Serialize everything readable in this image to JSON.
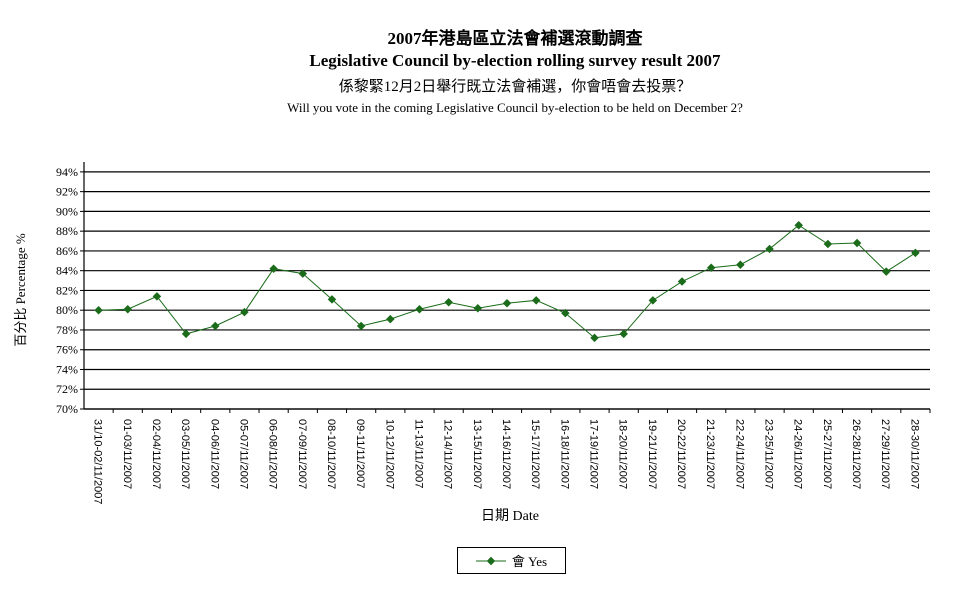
{
  "chart_data": {
    "type": "line",
    "title": "2007年港島區立法會補選滾動調查",
    "subtitle": "Legislative Council by-election rolling survey result 2007",
    "question_zh": "係黎緊12月2日舉行既立法會補選，你會唔會去投票？",
    "question_en": "Will you vote in the coming Legislative Council by-election to be held on December 2?",
    "xlabel": "日期 Date",
    "ylabel": "百分比 Percentage %",
    "ylim": [
      70,
      95
    ],
    "yticks": [
      "70%",
      "72%",
      "74%",
      "76%",
      "78%",
      "80%",
      "82%",
      "84%",
      "86%",
      "88%",
      "90%",
      "92%",
      "94%"
    ],
    "ytick_values": [
      70,
      72,
      74,
      76,
      78,
      80,
      82,
      84,
      86,
      88,
      90,
      92,
      94
    ],
    "grid": true,
    "legend_position": "bottom",
    "categories": [
      "31/10-02/11/2007",
      "01-03/11/2007",
      "02-04/11/2007",
      "03-05/11/2007",
      "04-06/11/2007",
      "05-07/11/2007",
      "06-08/11/2007",
      "07-09/11/2007",
      "08-10/11/2007",
      "09-11/11/2007",
      "10-12/11/2007",
      "11-13/11/2007",
      "12-14/11/2007",
      "13-15/11/2007",
      "14-16/11/2007",
      "15-17/11/2007",
      "16-18/11/2007",
      "17-19/11/2007",
      "18-20/11/2007",
      "19-21/11/2007",
      "20-22/11/2007",
      "21-23/11/2007",
      "22-24/11/2007",
      "23-25/11/2007",
      "24-26/11/2007",
      "25-27/11/2007",
      "26-28/11/2007",
      "27-29/11/2007",
      "28-30/11/2007"
    ],
    "series": [
      {
        "name": "會 Yes",
        "color": "#1a6b1a",
        "values": [
          80.0,
          80.1,
          81.4,
          77.6,
          78.4,
          79.8,
          84.2,
          83.7,
          81.1,
          78.4,
          79.1,
          80.1,
          80.8,
          80.2,
          80.7,
          81.0,
          79.7,
          77.2,
          77.6,
          81.0,
          82.9,
          84.3,
          84.6,
          86.2,
          88.6,
          86.7,
          86.8,
          83.9,
          85.8
        ]
      }
    ]
  }
}
